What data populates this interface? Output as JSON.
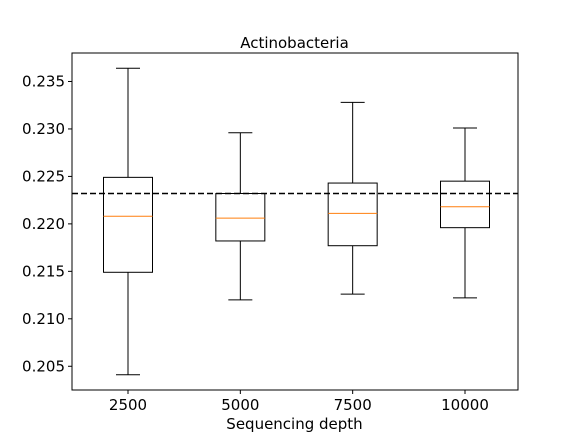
{
  "chart_data": {
    "type": "box",
    "title": "Actinobacteria",
    "xlabel": "Sequencing depth",
    "ylabel": "",
    "categories": [
      "2500",
      "5000",
      "7500",
      "10000"
    ],
    "boxes": [
      {
        "whisker_low": 0.2041,
        "q1": 0.2149,
        "median": 0.2208,
        "q3": 0.2249,
        "whisker_high": 0.2364
      },
      {
        "whisker_low": 0.212,
        "q1": 0.2182,
        "median": 0.2206,
        "q3": 0.2232,
        "whisker_high": 0.2296
      },
      {
        "whisker_low": 0.2126,
        "q1": 0.2177,
        "median": 0.2211,
        "q3": 0.2243,
        "whisker_high": 0.2328
      },
      {
        "whisker_low": 0.2122,
        "q1": 0.2196,
        "median": 0.2218,
        "q3": 0.2245,
        "whisker_high": 0.2301
      }
    ],
    "reference_line": {
      "y": 0.2232,
      "style": "dashed",
      "color": "#000000"
    },
    "yticks": [
      "0.205",
      "0.210",
      "0.215",
      "0.220",
      "0.225",
      "0.230",
      "0.235"
    ],
    "ylim": [
      0.2025,
      0.238
    ],
    "grid": false,
    "colors": {
      "box": "#000000",
      "median": "#ff7f0e"
    }
  }
}
